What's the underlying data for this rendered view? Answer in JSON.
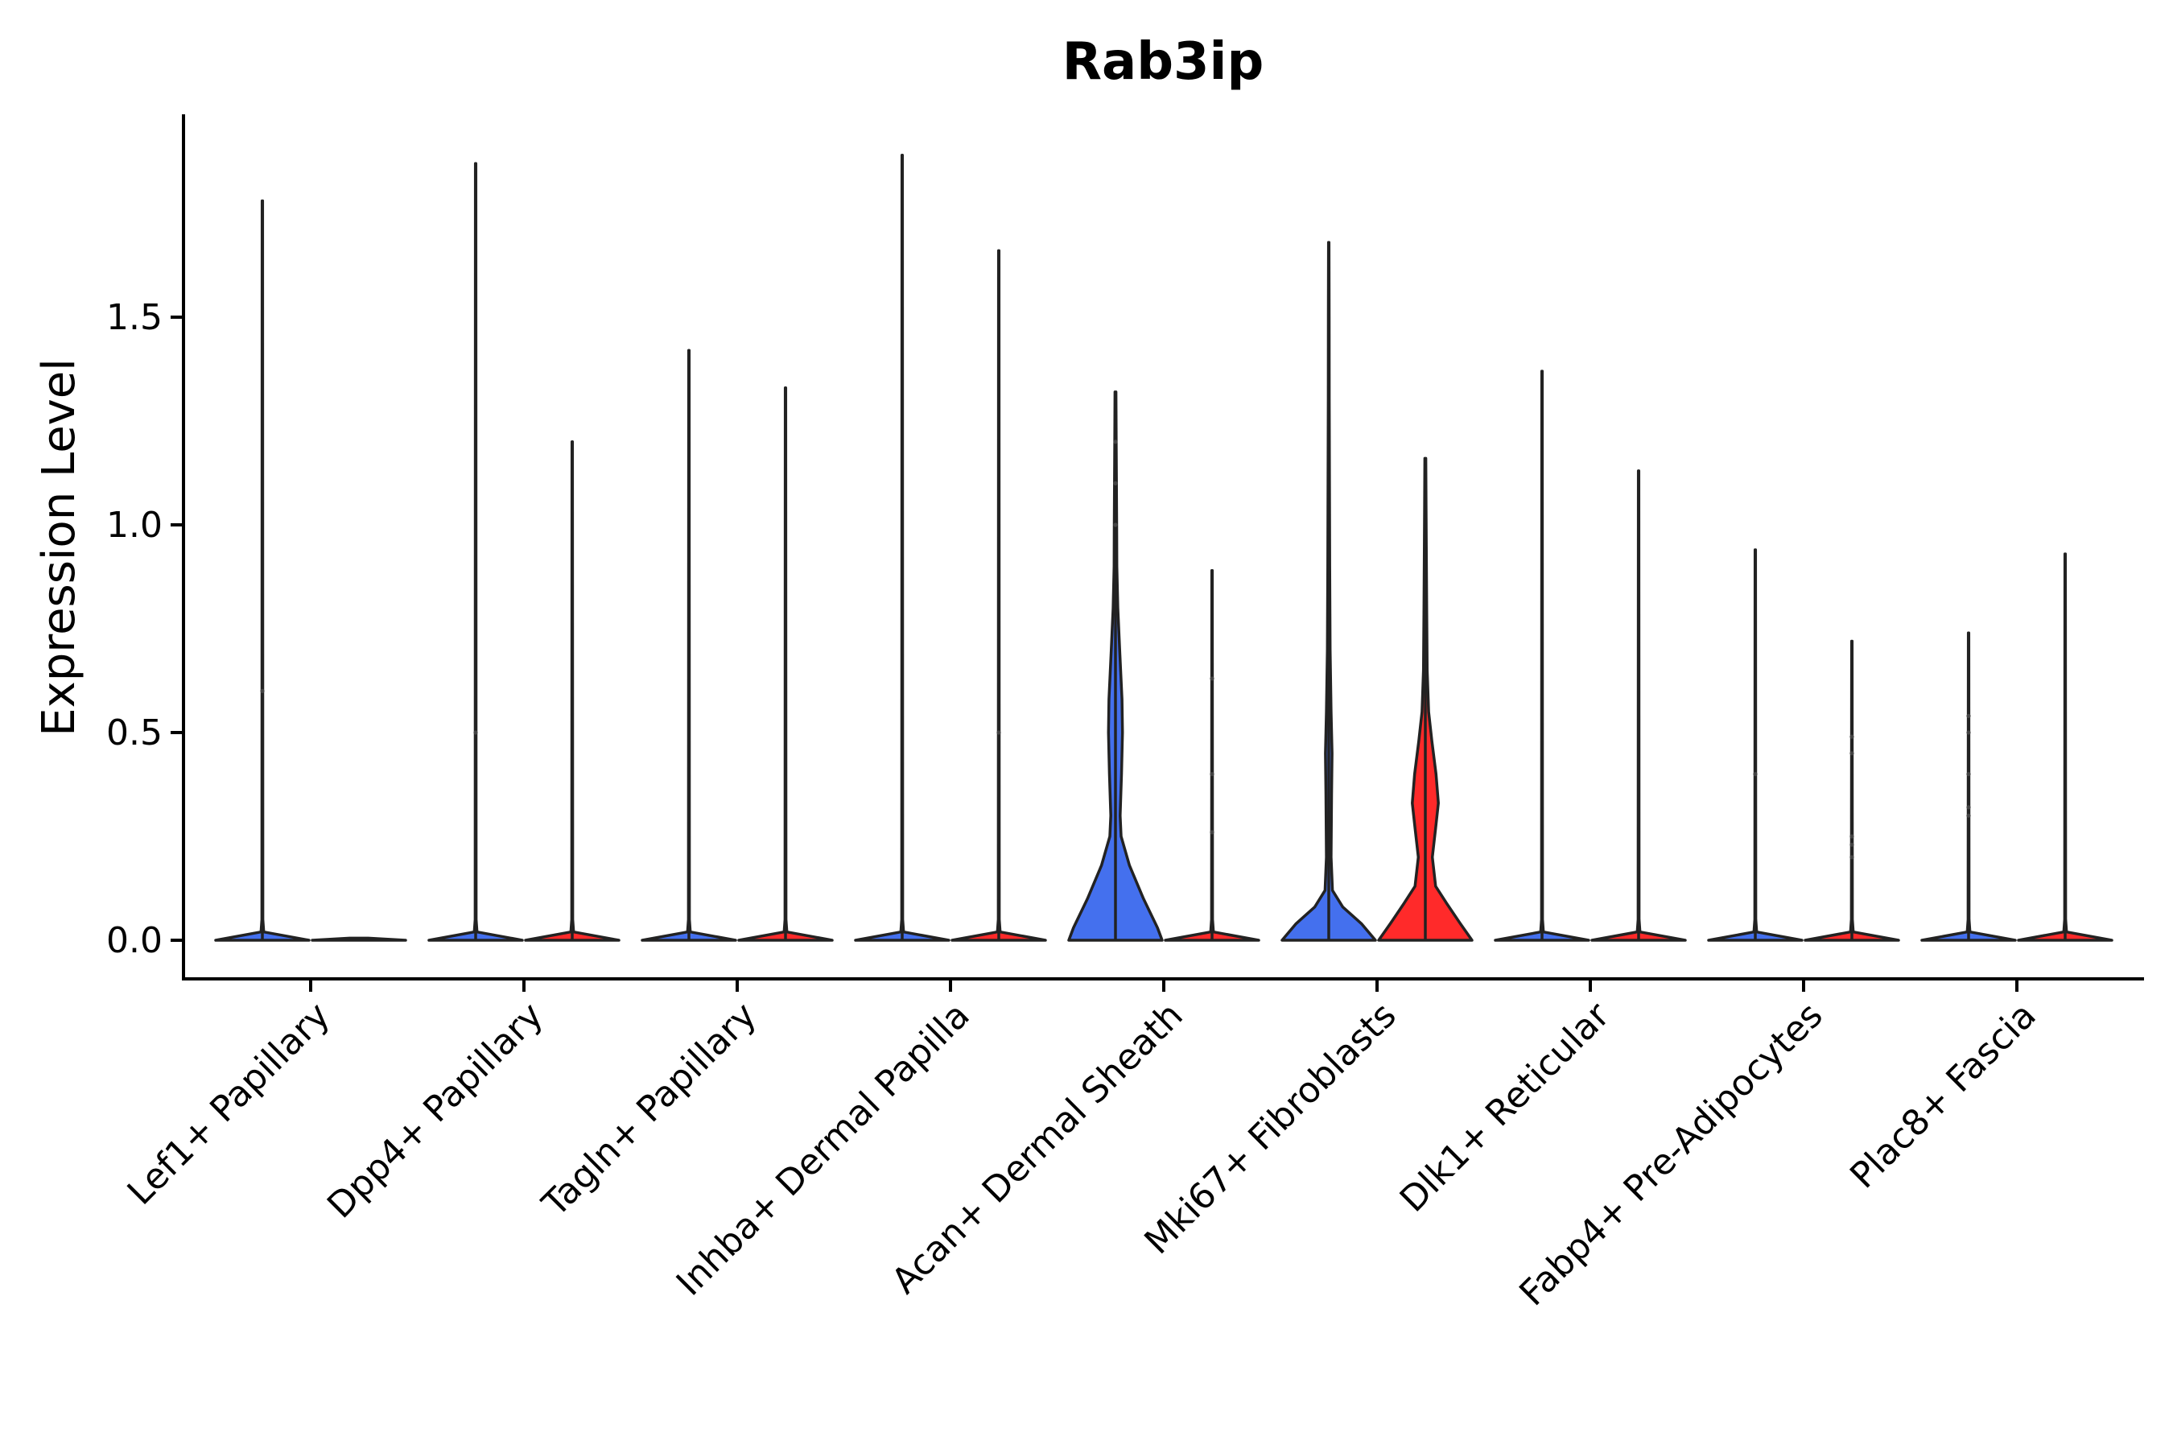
{
  "chart_data": {
    "type": "violin",
    "title": "Rab3ip",
    "ylabel": "Expression Level",
    "xlabel": "",
    "ylim": [
      -0.095,
      2.0
    ],
    "yticks": [
      "0.0",
      "0.5",
      "1.0",
      "1.5"
    ],
    "yticks_values": [
      0,
      0.5,
      1.0,
      1.5
    ],
    "grid": false,
    "legend": "none",
    "categories": [
      "Lef1+ Papillary",
      "Dpp4+ Papillary",
      "Tagln+ Papillary",
      "Inhba+ Dermal Papilla",
      "Acan+ Dermal Sheath",
      "Mki67+ Fibroblasts",
      "Dlk1+ Reticular",
      "Fabp4+ Pre-Adipocytes",
      "Plac8+ Fascia"
    ],
    "colors": {
      "group1": "#4470EE",
      "group2": "#FF2A2A"
    },
    "violins": [
      {
        "category": 0,
        "side": 0,
        "max": 1.78,
        "color": "#4470EE",
        "profile": [
          [
            0,
            1
          ],
          [
            0.02,
            0.03
          ],
          [
            0.05,
            0.01
          ],
          [
            1.78,
            0.005
          ]
        ],
        "points": [
          0.6
        ]
      },
      {
        "category": 0,
        "side": 1,
        "max": 0.0,
        "color": "#FF2A2A",
        "profile": [
          [
            0,
            1
          ],
          [
            0.005,
            0.2
          ]
        ],
        "points": []
      },
      {
        "category": 1,
        "side": 0,
        "max": 1.87,
        "color": "#4470EE",
        "profile": [
          [
            0,
            1
          ],
          [
            0.02,
            0.03
          ],
          [
            0.05,
            0.01
          ],
          [
            1.87,
            0.005
          ]
        ],
        "points": [
          0.5
        ]
      },
      {
        "category": 1,
        "side": 1,
        "max": 1.2,
        "color": "#FF2A2A",
        "profile": [
          [
            0,
            1
          ],
          [
            0.02,
            0.03
          ],
          [
            0.05,
            0.01
          ],
          [
            1.2,
            0.005
          ]
        ],
        "points": []
      },
      {
        "category": 2,
        "side": 0,
        "max": 1.42,
        "color": "#4470EE",
        "profile": [
          [
            0,
            1
          ],
          [
            0.02,
            0.03
          ],
          [
            0.05,
            0.01
          ],
          [
            1.42,
            0.005
          ]
        ],
        "points": []
      },
      {
        "category": 2,
        "side": 1,
        "max": 1.33,
        "color": "#FF2A2A",
        "profile": [
          [
            0,
            1
          ],
          [
            0.02,
            0.03
          ],
          [
            0.05,
            0.01
          ],
          [
            1.33,
            0.005
          ]
        ],
        "points": []
      },
      {
        "category": 3,
        "side": 0,
        "max": 1.89,
        "color": "#4470EE",
        "profile": [
          [
            0,
            1
          ],
          [
            0.02,
            0.03
          ],
          [
            0.05,
            0.01
          ],
          [
            1.89,
            0.005
          ]
        ],
        "points": []
      },
      {
        "category": 3,
        "side": 1,
        "max": 1.66,
        "color": "#FF2A2A",
        "profile": [
          [
            0,
            1
          ],
          [
            0.02,
            0.03
          ],
          [
            0.05,
            0.01
          ],
          [
            1.66,
            0.005
          ]
        ],
        "points": [
          0.5
        ]
      },
      {
        "category": 4,
        "side": 0,
        "max": 1.32,
        "color": "#4470EE",
        "profile": [
          [
            0,
            1
          ],
          [
            0.03,
            0.9
          ],
          [
            0.1,
            0.6
          ],
          [
            0.18,
            0.3
          ],
          [
            0.25,
            0.12
          ],
          [
            0.3,
            0.1
          ],
          [
            0.4,
            0.13
          ],
          [
            0.5,
            0.15
          ],
          [
            0.58,
            0.14
          ],
          [
            0.7,
            0.09
          ],
          [
            0.8,
            0.05
          ],
          [
            0.9,
            0.03
          ],
          [
            1.0,
            0.025
          ],
          [
            1.1,
            0.02
          ],
          [
            1.2,
            0.015
          ],
          [
            1.32,
            0.01
          ]
        ],
        "points": [
          1.0,
          1.1,
          1.2
        ]
      },
      {
        "category": 4,
        "side": 1,
        "max": 0.89,
        "color": "#FF2A2A",
        "profile": [
          [
            0,
            1
          ],
          [
            0.02,
            0.03
          ],
          [
            0.05,
            0.01
          ],
          [
            0.89,
            0.005
          ]
        ],
        "points": [
          0.26,
          0.4,
          0.63
        ]
      },
      {
        "category": 5,
        "side": 0,
        "max": 1.68,
        "color": "#4470EE",
        "profile": [
          [
            0,
            1
          ],
          [
            0.04,
            0.7
          ],
          [
            0.08,
            0.3
          ],
          [
            0.12,
            0.08
          ],
          [
            0.2,
            0.05
          ],
          [
            0.35,
            0.06
          ],
          [
            0.45,
            0.07
          ],
          [
            0.55,
            0.05
          ],
          [
            0.7,
            0.03
          ],
          [
            0.9,
            0.02
          ],
          [
            1.1,
            0.015
          ],
          [
            1.3,
            0.01
          ],
          [
            1.5,
            0.008
          ],
          [
            1.68,
            0.005
          ]
        ],
        "points": []
      },
      {
        "category": 5,
        "side": 1,
        "max": 1.16,
        "color": "#FF2A2A",
        "profile": [
          [
            0,
            1
          ],
          [
            0.04,
            0.75
          ],
          [
            0.09,
            0.45
          ],
          [
            0.13,
            0.22
          ],
          [
            0.2,
            0.15
          ],
          [
            0.27,
            0.22
          ],
          [
            0.33,
            0.28
          ],
          [
            0.4,
            0.23
          ],
          [
            0.48,
            0.14
          ],
          [
            0.55,
            0.07
          ],
          [
            0.65,
            0.04
          ],
          [
            0.8,
            0.03
          ],
          [
            0.95,
            0.02
          ],
          [
            1.05,
            0.015
          ],
          [
            1.16,
            0.01
          ]
        ],
        "points": []
      },
      {
        "category": 6,
        "side": 0,
        "max": 1.37,
        "color": "#4470EE",
        "profile": [
          [
            0,
            1
          ],
          [
            0.02,
            0.03
          ],
          [
            0.05,
            0.01
          ],
          [
            1.37,
            0.005
          ]
        ],
        "points": []
      },
      {
        "category": 6,
        "side": 1,
        "max": 1.13,
        "color": "#FF2A2A",
        "profile": [
          [
            0,
            1
          ],
          [
            0.02,
            0.03
          ],
          [
            0.05,
            0.01
          ],
          [
            1.13,
            0.005
          ]
        ],
        "points": []
      },
      {
        "category": 7,
        "side": 0,
        "max": 0.94,
        "color": "#4470EE",
        "profile": [
          [
            0,
            1
          ],
          [
            0.02,
            0.03
          ],
          [
            0.05,
            0.01
          ],
          [
            0.94,
            0.005
          ]
        ],
        "points": [
          0.4
        ]
      },
      {
        "category": 7,
        "side": 1,
        "max": 0.72,
        "color": "#FF2A2A",
        "profile": [
          [
            0,
            1
          ],
          [
            0.02,
            0.03
          ],
          [
            0.05,
            0.01
          ],
          [
            0.72,
            0.005
          ]
        ],
        "points": [
          0.2,
          0.23,
          0.25,
          0.45,
          0.49
        ]
      },
      {
        "category": 8,
        "side": 0,
        "max": 0.74,
        "color": "#4470EE",
        "profile": [
          [
            0,
            1
          ],
          [
            0.02,
            0.03
          ],
          [
            0.05,
            0.01
          ],
          [
            0.74,
            0.005
          ]
        ],
        "points": [
          0.3,
          0.32,
          0.4,
          0.5,
          0.54
        ]
      },
      {
        "category": 8,
        "side": 1,
        "max": 0.93,
        "color": "#FF2A2A",
        "profile": [
          [
            0,
            1
          ],
          [
            0.02,
            0.03
          ],
          [
            0.05,
            0.01
          ],
          [
            0.93,
            0.005
          ]
        ],
        "points": []
      }
    ]
  }
}
